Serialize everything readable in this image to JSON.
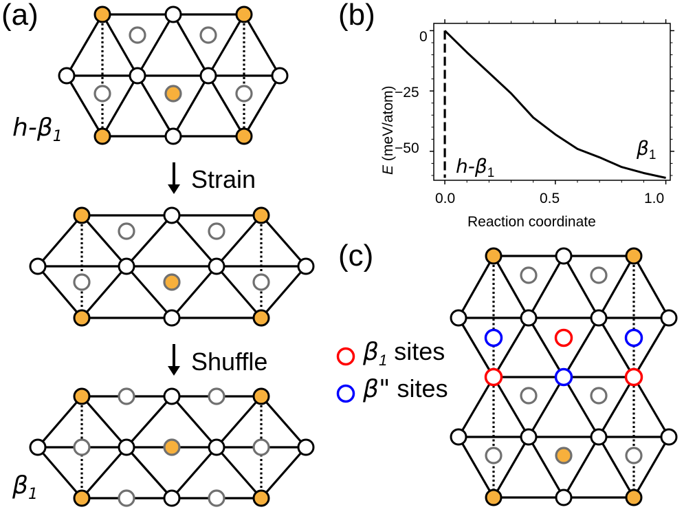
{
  "panel_labels": {
    "a": "(a)",
    "b": "(b)",
    "c": "(c)"
  },
  "panel_a": {
    "top_label": {
      "main": "h-β",
      "sub": "1"
    },
    "step1": "Strain",
    "step2": "Shuffle",
    "bottom_label": {
      "main": "β",
      "sub": "1"
    }
  },
  "panel_c_legend": {
    "beta1": {
      "main": "β",
      "sub": "1",
      "suffix": " sites",
      "color": "#ff0000"
    },
    "beta2": {
      "main": "β\"",
      "suffix": " sites",
      "color": "#0000ff"
    }
  },
  "chart_data": {
    "type": "line",
    "xlabel": "Reaction coordinate",
    "ylabel_italic": "E",
    "ylabel_rest": " (meV/atom)",
    "xlim": [
      -0.05,
      1.02
    ],
    "ylim": [
      -62,
      3
    ],
    "xticks": [
      0.0,
      0.5,
      1.0
    ],
    "xtick_labels": [
      "0.0",
      "0.5",
      "1.0"
    ],
    "yticks": [
      0,
      -25,
      -50
    ],
    "ytick_labels": [
      "0",
      "−25",
      "−50"
    ],
    "series": [
      {
        "style": "solid",
        "x": [
          0.0,
          0.1,
          0.2,
          0.3,
          0.4,
          0.5,
          0.6,
          0.7,
          0.8,
          0.9,
          1.0
        ],
        "y": [
          0,
          -9,
          -17.5,
          -26,
          -36,
          -43,
          -49,
          -52.5,
          -56.5,
          -59,
          -61
        ]
      },
      {
        "style": "dashed",
        "x": [
          0.0,
          0.0
        ],
        "y": [
          0,
          -61
        ]
      }
    ],
    "annotations": [
      {
        "main": "h-β",
        "sub": "1"
      },
      {
        "main": "β",
        "sub": "1"
      }
    ]
  },
  "colors": {
    "orange": "#f7b03c",
    "gray": "#707070",
    "red": "#ff0000",
    "blue": "#0000ff",
    "bond": "#000000"
  }
}
